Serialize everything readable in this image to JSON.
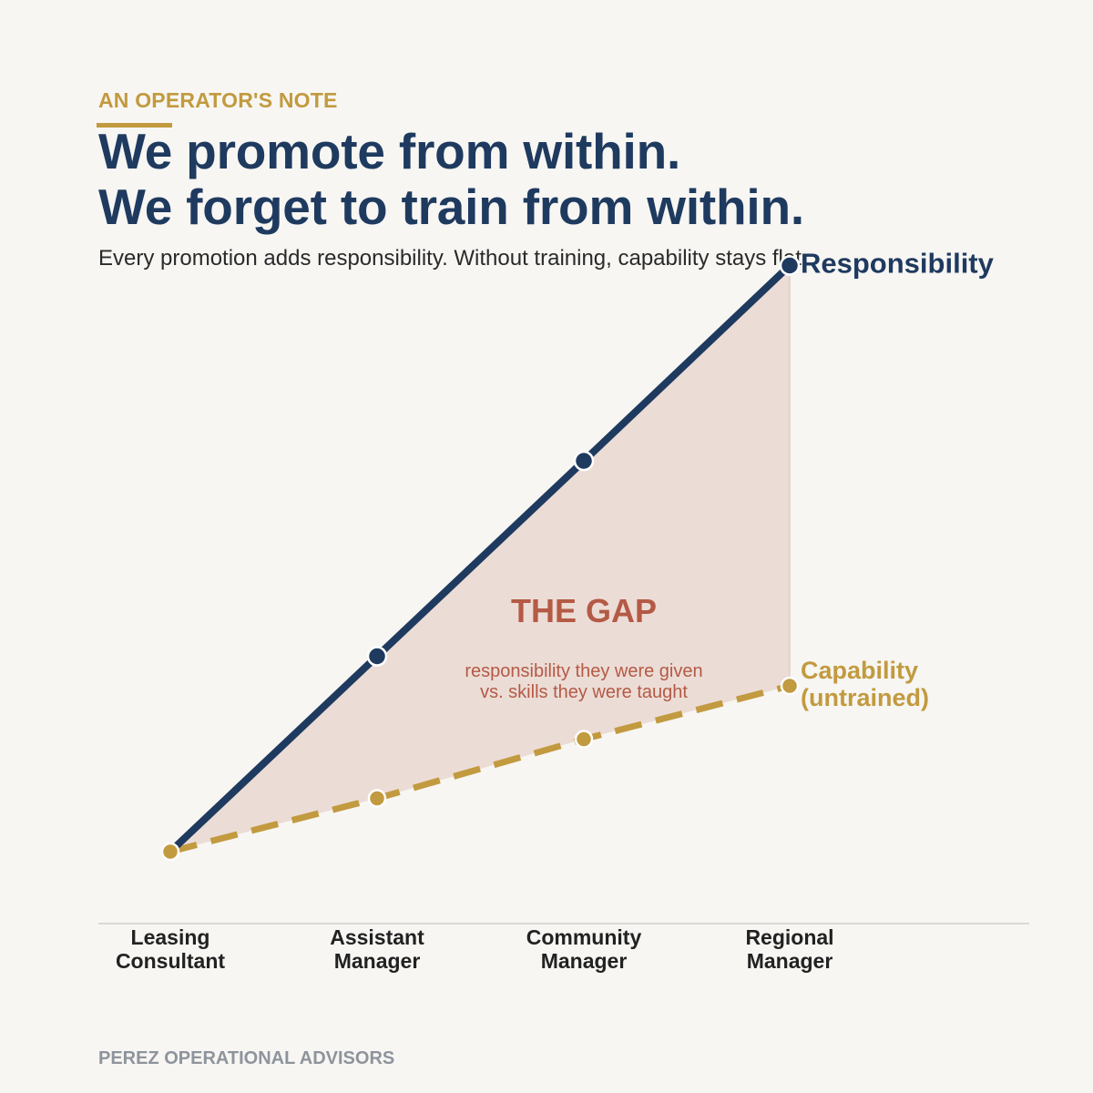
{
  "header": {
    "eyebrow": "AN OPERATOR'S NOTE",
    "headline_line1": "We promote from within.",
    "headline_line2": "We forget to train from within.",
    "subtitle": "Every promotion adds responsibility. Without training, capability stays flat."
  },
  "chart_data": {
    "type": "line",
    "categories": [
      [
        "Leasing",
        "Consultant"
      ],
      [
        "Assistant",
        "Manager"
      ],
      [
        "Community",
        "Manager"
      ],
      [
        "Regional",
        "Manager"
      ]
    ],
    "ylim": [
      0,
      100
    ],
    "series": [
      {
        "name": "Responsibility",
        "label_lines": [
          "Responsibility"
        ],
        "values": [
          10,
          43,
          76,
          109
        ],
        "color": "#1f3a5f",
        "dashed": false
      },
      {
        "name": "Capability (untrained)",
        "label_lines": [
          "Capability",
          "(untrained)"
        ],
        "values": [
          10,
          19,
          29,
          38
        ],
        "color": "#c29a3f",
        "dashed": true
      }
    ],
    "gap_annotation": {
      "title": "THE GAP",
      "line1": "responsibility they were given",
      "line2": "vs. skills they were taught"
    },
    "gap_fill_color": "#ecdcd6",
    "gap_text_color": "#b45a45"
  },
  "footer": {
    "brand": "PEREZ OPERATIONAL ADVISORS"
  }
}
